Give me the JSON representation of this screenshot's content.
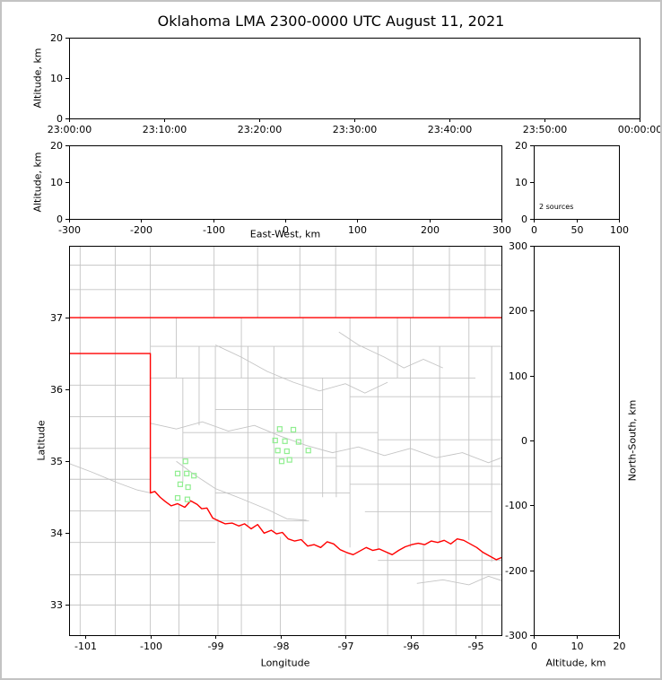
{
  "title": "Oklahoma LMA 2300-0000 UTC August 11, 2021",
  "colors": {
    "axis": "#000000",
    "county_lines": "#c4c4c4",
    "state_border": "#ff0000",
    "source_marker": "#90ee90",
    "figure_border": "#c3c3c3",
    "background": "#ffffff"
  },
  "panels": {
    "time_height": {
      "ylabel": "Altitude, km",
      "ylim": [
        0,
        20
      ],
      "yticks": [
        0,
        10,
        20
      ],
      "xtick_labels": [
        "23:00:00",
        "23:10:00",
        "23:20:00",
        "23:30:00",
        "23:40:00",
        "23:50:00",
        "00:00:00"
      ]
    },
    "ew_height": {
      "xlabel": "East-West, km",
      "ylabel": "Altitude, km",
      "xlim": [
        -300,
        300
      ],
      "xticks": [
        -300,
        -200,
        -100,
        0,
        100,
        200,
        300
      ],
      "ylim": [
        0,
        20
      ],
      "yticks": [
        0,
        10,
        20
      ]
    },
    "histogram": {
      "annotation": "2 sources",
      "xlim": [
        0,
        100
      ],
      "xticks": [
        0,
        50,
        100
      ],
      "ylim": [
        0,
        20
      ],
      "yticks": [
        0,
        10,
        20
      ]
    },
    "map": {
      "xlabel": "Longitude",
      "ylabel": "Latitude",
      "xlim": [
        -101.25,
        -94.6
      ],
      "xticks": [
        -101,
        -100,
        -99,
        -98,
        -97,
        -96,
        -95
      ],
      "ylim": [
        32.58,
        38.0
      ],
      "yticks": [
        33,
        34,
        35,
        36,
        37
      ]
    },
    "ns_height": {
      "xlabel": "Altitude, km",
      "ylabel_right": "North-South, km",
      "xlim": [
        0,
        20
      ],
      "xticks": [
        0,
        10,
        20
      ],
      "ylim": [
        -300,
        300
      ],
      "yticks": [
        -300,
        -200,
        -100,
        0,
        100,
        200,
        300
      ]
    }
  },
  "chart_data": {
    "type": "scatter",
    "title": "Oklahoma LMA 2300-0000 UTC August 11, 2021",
    "legend": "none",
    "grid": false,
    "histogram_annotation": "2 sources",
    "source_points_lon_lat": [
      [
        -99.46,
        35.0
      ],
      [
        -99.58,
        34.83
      ],
      [
        -99.44,
        34.83
      ],
      [
        -99.33,
        34.8
      ],
      [
        -99.54,
        34.68
      ],
      [
        -99.42,
        34.64
      ],
      [
        -99.58,
        34.49
      ],
      [
        -99.43,
        34.47
      ],
      [
        -98.01,
        35.45
      ],
      [
        -97.8,
        35.44
      ],
      [
        -98.08,
        35.29
      ],
      [
        -97.93,
        35.28
      ],
      [
        -97.72,
        35.27
      ],
      [
        -98.04,
        35.15
      ],
      [
        -97.9,
        35.14
      ],
      [
        -97.57,
        35.15
      ],
      [
        -97.98,
        35.0
      ],
      [
        -97.86,
        35.02
      ]
    ],
    "map_layers": {
      "state_border_north": [
        [
          -101.25,
          37.0
        ],
        [
          -94.6,
          37.0
        ]
      ],
      "state_border_path": [
        [
          -101.25,
          36.5
        ],
        [
          -100.0,
          36.5
        ],
        [
          -100.0,
          34.56
        ],
        [
          -99.93,
          34.58
        ],
        [
          -99.85,
          34.5
        ],
        [
          -99.77,
          34.44
        ],
        [
          -99.68,
          34.38
        ],
        [
          -99.58,
          34.41
        ],
        [
          -99.47,
          34.36
        ],
        [
          -99.38,
          34.45
        ],
        [
          -99.28,
          34.4
        ],
        [
          -99.21,
          34.34
        ],
        [
          -99.13,
          34.35
        ],
        [
          -99.04,
          34.21
        ],
        [
          -98.95,
          34.17
        ],
        [
          -98.85,
          34.13
        ],
        [
          -98.74,
          34.14
        ],
        [
          -98.64,
          34.1
        ],
        [
          -98.55,
          34.13
        ],
        [
          -98.45,
          34.06
        ],
        [
          -98.35,
          34.12
        ],
        [
          -98.25,
          34.0
        ],
        [
          -98.14,
          34.04
        ],
        [
          -98.06,
          33.99
        ],
        [
          -97.97,
          34.01
        ],
        [
          -97.88,
          33.92
        ],
        [
          -97.78,
          33.89
        ],
        [
          -97.68,
          33.91
        ],
        [
          -97.58,
          33.82
        ],
        [
          -97.48,
          33.84
        ],
        [
          -97.38,
          33.8
        ],
        [
          -97.28,
          33.88
        ],
        [
          -97.18,
          33.85
        ],
        [
          -97.08,
          33.77
        ],
        [
          -96.98,
          33.73
        ],
        [
          -96.88,
          33.7
        ],
        [
          -96.78,
          33.75
        ],
        [
          -96.68,
          33.8
        ],
        [
          -96.58,
          33.76
        ],
        [
          -96.48,
          33.78
        ],
        [
          -96.38,
          33.74
        ],
        [
          -96.28,
          33.7
        ],
        [
          -96.18,
          33.76
        ],
        [
          -96.08,
          33.81
        ],
        [
          -95.98,
          33.84
        ],
        [
          -95.88,
          33.86
        ],
        [
          -95.78,
          33.84
        ],
        [
          -95.68,
          33.89
        ],
        [
          -95.58,
          33.87
        ],
        [
          -95.48,
          33.9
        ],
        [
          -95.38,
          33.85
        ],
        [
          -95.28,
          33.92
        ],
        [
          -95.18,
          33.9
        ],
        [
          -95.08,
          33.85
        ],
        [
          -94.98,
          33.8
        ],
        [
          -94.88,
          33.73
        ],
        [
          -94.78,
          33.68
        ],
        [
          -94.68,
          33.63
        ],
        [
          -94.6,
          33.66
        ]
      ],
      "county_vlines": [
        [
          -101.08,
          32.58,
          38.0
        ],
        [
          -100.54,
          32.58,
          38.0
        ],
        [
          -100.0,
          36.5,
          38.0
        ],
        [
          -100.0,
          32.58,
          34.56
        ],
        [
          -99.6,
          36.16,
          37.0
        ],
        [
          -99.5,
          34.7,
          36.16
        ],
        [
          -99.56,
          32.58,
          34.4
        ],
        [
          -99.25,
          35.5,
          36.6
        ],
        [
          -99.0,
          34.2,
          36.6
        ],
        [
          -98.96,
          32.58,
          34.2
        ],
        [
          -98.6,
          36.16,
          37.0
        ],
        [
          -98.5,
          34.1,
          36.6
        ],
        [
          -98.6,
          32.58,
          34.1
        ],
        [
          -98.1,
          34.0,
          36.6
        ],
        [
          -97.65,
          33.9,
          37.0
        ],
        [
          -97.35,
          34.5,
          36.16
        ],
        [
          -97.14,
          34.5,
          35.4
        ],
        [
          -96.93,
          33.8,
          37.0
        ],
        [
          -96.5,
          33.77,
          36.6
        ],
        [
          -96.2,
          36.16,
          37.0
        ],
        [
          -96.0,
          33.8,
          37.0
        ],
        [
          -95.55,
          33.87,
          36.6
        ],
        [
          -95.1,
          33.9,
          37.0
        ],
        [
          -94.75,
          33.6,
          36.6
        ],
        [
          -98.0,
          32.58,
          33.95
        ],
        [
          -97.0,
          32.58,
          33.72
        ],
        [
          -96.35,
          32.58,
          33.74
        ],
        [
          -95.8,
          32.58,
          33.85
        ],
        [
          -95.3,
          32.58,
          33.9
        ],
        [
          -94.9,
          32.58,
          33.75
        ],
        [
          -99.02,
          37.0,
          38.0
        ],
        [
          -98.35,
          37.0,
          38.0
        ],
        [
          -97.7,
          37.0,
          38.0
        ],
        [
          -97.15,
          37.0,
          38.0
        ],
        [
          -96.53,
          37.0,
          38.0
        ],
        [
          -95.96,
          37.0,
          38.0
        ],
        [
          -95.4,
          37.0,
          38.0
        ],
        [
          -94.85,
          37.0,
          38.0
        ]
      ],
      "county_hlines": [
        [
          37.73,
          -101.25,
          -94.6
        ],
        [
          37.39,
          -101.25,
          -94.6
        ],
        [
          36.6,
          -100.0,
          -94.6
        ],
        [
          36.16,
          -100.0,
          -95.0
        ],
        [
          35.72,
          -99.0,
          -97.35
        ],
        [
          35.9,
          -96.93,
          -94.6
        ],
        [
          35.4,
          -99.5,
          -96.5
        ],
        [
          35.3,
          -96.5,
          -94.6
        ],
        [
          35.05,
          -100.0,
          -97.14
        ],
        [
          34.93,
          -97.14,
          -94.6
        ],
        [
          34.56,
          -99.0,
          -96.93
        ],
        [
          34.68,
          -96.93,
          -94.6
        ],
        [
          34.17,
          -99.56,
          -97.56
        ],
        [
          34.3,
          -96.7,
          -94.75
        ],
        [
          36.06,
          -101.25,
          -100.0
        ],
        [
          35.62,
          -101.25,
          -100.0
        ],
        [
          35.18,
          -101.25,
          -100.0
        ],
        [
          34.75,
          -101.25,
          -100.0
        ],
        [
          34.31,
          -101.25,
          -100.0
        ],
        [
          33.87,
          -101.25,
          -99.0
        ],
        [
          33.42,
          -101.25,
          -94.6
        ],
        [
          33.0,
          -101.25,
          -94.6
        ],
        [
          33.62,
          -96.5,
          -94.6
        ]
      ],
      "rivers": [
        [
          [
            -100.0,
            35.53
          ],
          [
            -99.6,
            35.45
          ],
          [
            -99.2,
            35.55
          ],
          [
            -98.8,
            35.42
          ],
          [
            -98.4,
            35.5
          ],
          [
            -98.0,
            35.35
          ],
          [
            -97.6,
            35.22
          ],
          [
            -97.2,
            35.12
          ],
          [
            -96.8,
            35.2
          ],
          [
            -96.4,
            35.08
          ],
          [
            -96.0,
            35.18
          ],
          [
            -95.6,
            35.05
          ],
          [
            -95.2,
            35.12
          ],
          [
            -94.8,
            34.98
          ],
          [
            -94.6,
            35.05
          ]
        ],
        [
          [
            -99.0,
            36.62
          ],
          [
            -98.6,
            36.45
          ],
          [
            -98.2,
            36.25
          ],
          [
            -97.8,
            36.1
          ],
          [
            -97.4,
            35.98
          ],
          [
            -97.0,
            36.08
          ],
          [
            -96.7,
            35.95
          ],
          [
            -96.35,
            36.1
          ]
        ],
        [
          [
            -99.6,
            35.0
          ],
          [
            -99.3,
            34.8
          ],
          [
            -99.0,
            34.62
          ],
          [
            -98.6,
            34.48
          ],
          [
            -98.2,
            34.33
          ],
          [
            -97.9,
            34.2
          ],
          [
            -97.6,
            34.18
          ]
        ],
        [
          [
            -101.25,
            34.97
          ],
          [
            -100.9,
            34.85
          ],
          [
            -100.5,
            34.7
          ],
          [
            -100.2,
            34.6
          ],
          [
            -100.0,
            34.56
          ]
        ],
        [
          [
            -97.1,
            36.8
          ],
          [
            -96.8,
            36.62
          ],
          [
            -96.4,
            36.45
          ],
          [
            -96.1,
            36.3
          ],
          [
            -95.8,
            36.42
          ],
          [
            -95.5,
            36.3
          ]
        ],
        [
          [
            -95.9,
            33.3
          ],
          [
            -95.5,
            33.35
          ],
          [
            -95.1,
            33.28
          ],
          [
            -94.8,
            33.4
          ],
          [
            -94.6,
            33.34
          ]
        ]
      ]
    }
  }
}
